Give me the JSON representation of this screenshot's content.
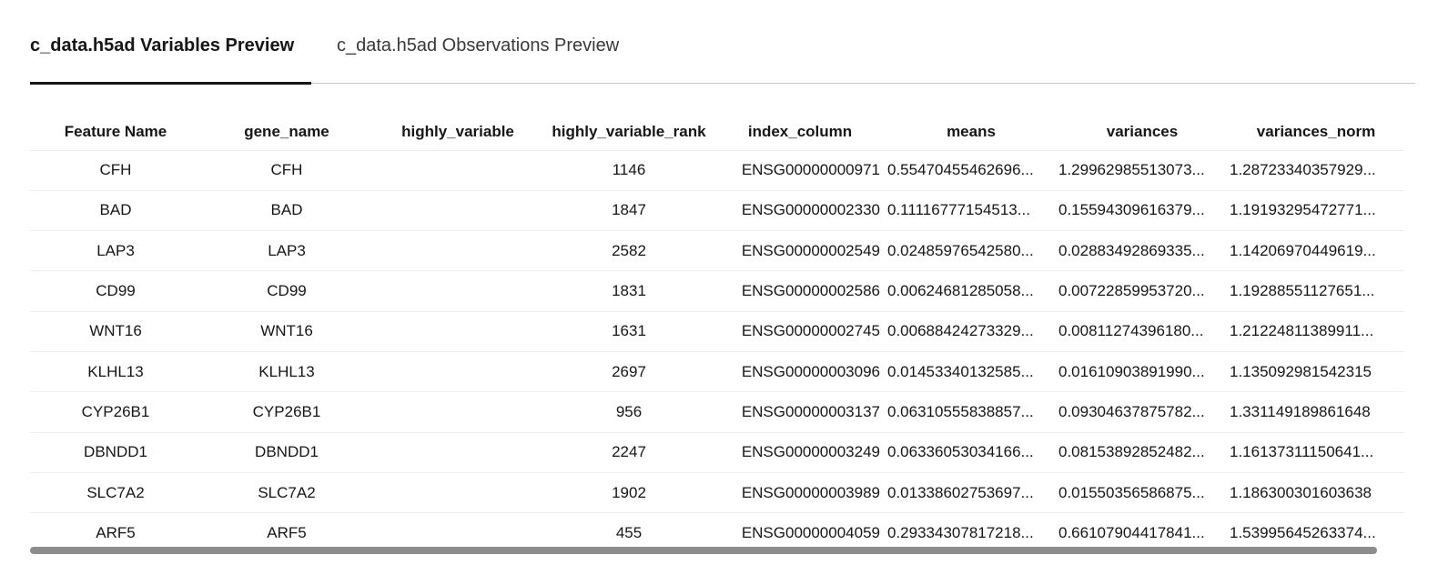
{
  "tabs": [
    {
      "label": "c_data.h5ad Variables Preview",
      "active": true
    },
    {
      "label": "c_data.h5ad Observations Preview",
      "active": false
    }
  ],
  "table": {
    "columns": [
      "Feature Name",
      "gene_name",
      "highly_variable",
      "highly_variable_rank",
      "index_column",
      "means",
      "variances",
      "variances_norm"
    ],
    "rows": [
      [
        "CFH",
        "CFH",
        "",
        "1146",
        "ENSG00000000971",
        "0.55470455462696...",
        "1.29962985513073...",
        "1.28723340357929..."
      ],
      [
        "BAD",
        "BAD",
        "",
        "1847",
        "ENSG00000002330",
        "0.11116777154513...",
        "0.15594309616379...",
        "1.19193295472771..."
      ],
      [
        "LAP3",
        "LAP3",
        "",
        "2582",
        "ENSG00000002549",
        "0.02485976542580...",
        "0.02883492869335...",
        "1.14206970449619..."
      ],
      [
        "CD99",
        "CD99",
        "",
        "1831",
        "ENSG00000002586",
        "0.00624681285058...",
        "0.00722859953720...",
        "1.19288551127651..."
      ],
      [
        "WNT16",
        "WNT16",
        "",
        "1631",
        "ENSG00000002745",
        "0.00688424273329...",
        "0.00811274396180...",
        "1.21224811389911..."
      ],
      [
        "KLHL13",
        "KLHL13",
        "",
        "2697",
        "ENSG00000003096",
        "0.01453340132585...",
        "0.01610903891990...",
        "1.135092981542315"
      ],
      [
        "CYP26B1",
        "CYP26B1",
        "",
        "956",
        "ENSG00000003137",
        "0.06310555838857...",
        "0.09304637875782...",
        "1.331149189861648"
      ],
      [
        "DBNDD1",
        "DBNDD1",
        "",
        "2247",
        "ENSG00000003249",
        "0.06336053034166...",
        "0.08153892852482...",
        "1.16137311150641..."
      ],
      [
        "SLC7A2",
        "SLC7A2",
        "",
        "1902",
        "ENSG00000003989",
        "0.01338602753697...",
        "0.01550356586875...",
        "1.186300301603638"
      ],
      [
        "ARF5",
        "ARF5",
        "",
        "455",
        "ENSG00000004059",
        "0.29334307817218...",
        "0.66107904417841...",
        "1.53995645263374..."
      ]
    ]
  },
  "colors": {
    "text": "#161616",
    "tab_indicator": "#161616",
    "divider": "#c6c6c6",
    "scrollbar": "#8d8d8d"
  }
}
